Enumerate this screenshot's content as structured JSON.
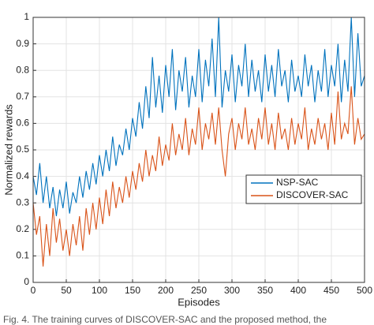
{
  "chart_data": {
    "type": "line",
    "xlabel": "Episodes",
    "ylabel": "Normalized rewards",
    "caption": "Fig. 4.   The training curves of DISCOVER-SAC and the proposed method, the",
    "x": [
      0,
      5,
      10,
      15,
      20,
      25,
      30,
      35,
      40,
      45,
      50,
      55,
      60,
      65,
      70,
      75,
      80,
      85,
      90,
      95,
      100,
      105,
      110,
      115,
      120,
      125,
      130,
      135,
      140,
      145,
      150,
      155,
      160,
      165,
      170,
      175,
      180,
      185,
      190,
      195,
      200,
      205,
      210,
      215,
      220,
      225,
      230,
      235,
      240,
      245,
      250,
      255,
      260,
      265,
      270,
      275,
      280,
      285,
      290,
      295,
      300,
      305,
      310,
      315,
      320,
      325,
      330,
      335,
      340,
      345,
      350,
      355,
      360,
      365,
      370,
      375,
      380,
      385,
      390,
      395,
      400,
      405,
      410,
      415,
      420,
      425,
      430,
      435,
      440,
      445,
      450,
      455,
      460,
      465,
      470,
      475,
      480,
      485,
      490,
      495,
      500
    ],
    "series": [
      {
        "name": "NSP-SAC",
        "color": "#0072bd",
        "values": [
          0.4,
          0.33,
          0.45,
          0.3,
          0.4,
          0.28,
          0.36,
          0.25,
          0.35,
          0.28,
          0.38,
          0.26,
          0.34,
          0.3,
          0.4,
          0.32,
          0.42,
          0.35,
          0.45,
          0.37,
          0.48,
          0.4,
          0.5,
          0.42,
          0.55,
          0.44,
          0.52,
          0.48,
          0.58,
          0.5,
          0.62,
          0.55,
          0.68,
          0.58,
          0.74,
          0.62,
          0.85,
          0.66,
          0.78,
          0.64,
          0.82,
          0.7,
          0.88,
          0.65,
          0.8,
          0.72,
          0.85,
          0.66,
          0.78,
          0.7,
          0.88,
          0.68,
          0.84,
          0.74,
          0.92,
          0.7,
          1.0,
          0.66,
          0.8,
          0.72,
          0.86,
          0.68,
          0.82,
          0.74,
          0.9,
          0.7,
          0.84,
          0.72,
          0.8,
          0.68,
          0.86,
          0.72,
          0.82,
          0.7,
          0.88,
          0.74,
          0.8,
          0.68,
          0.84,
          0.72,
          0.78,
          0.7,
          0.86,
          0.74,
          0.82,
          0.68,
          0.8,
          0.72,
          0.88,
          0.7,
          0.82,
          0.74,
          0.9,
          0.68,
          0.84,
          0.72,
          1.0,
          0.7,
          0.94,
          0.74,
          0.78
        ]
      },
      {
        "name": "DISCOVER-SAC",
        "color": "#d95319",
        "values": [
          0.3,
          0.18,
          0.25,
          0.06,
          0.22,
          0.1,
          0.28,
          0.15,
          0.24,
          0.12,
          0.2,
          0.1,
          0.22,
          0.14,
          0.25,
          0.12,
          0.28,
          0.18,
          0.3,
          0.2,
          0.32,
          0.22,
          0.35,
          0.25,
          0.38,
          0.28,
          0.36,
          0.3,
          0.4,
          0.32,
          0.42,
          0.35,
          0.45,
          0.38,
          0.5,
          0.4,
          0.48,
          0.42,
          0.55,
          0.44,
          0.52,
          0.46,
          0.6,
          0.48,
          0.56,
          0.5,
          0.62,
          0.48,
          0.58,
          0.52,
          0.66,
          0.5,
          0.6,
          0.54,
          0.64,
          0.52,
          0.66,
          0.5,
          0.4,
          0.56,
          0.62,
          0.5,
          0.6,
          0.54,
          0.66,
          0.52,
          0.58,
          0.5,
          0.62,
          0.54,
          0.66,
          0.52,
          0.6,
          0.5,
          0.64,
          0.54,
          0.58,
          0.5,
          0.62,
          0.52,
          0.6,
          0.54,
          0.66,
          0.5,
          0.58,
          0.52,
          0.62,
          0.54,
          0.6,
          0.5,
          0.64,
          0.52,
          0.72,
          0.54,
          0.6,
          0.56,
          0.74,
          0.52,
          0.62,
          0.54,
          0.56
        ]
      }
    ],
    "xlim": [
      0,
      500
    ],
    "xticks": [
      0,
      50,
      100,
      150,
      200,
      250,
      300,
      350,
      400,
      450,
      500
    ],
    "ylim": [
      0,
      1
    ],
    "yticks": [
      0,
      0.1,
      0.2,
      0.3,
      0.4,
      0.5,
      0.6,
      0.7,
      0.8,
      0.9,
      1
    ],
    "grid": true,
    "legend": "center right"
  }
}
